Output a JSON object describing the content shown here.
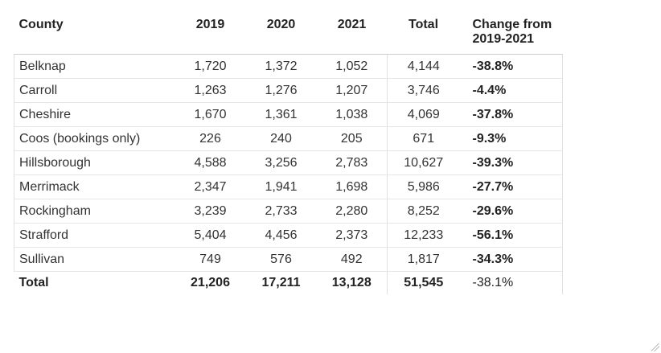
{
  "table": {
    "headers": {
      "county": "County",
      "y2019": "2019",
      "y2020": "2020",
      "y2021": "2021",
      "total": "Total",
      "change_line1": "Change from",
      "change_line2": "2019-2021"
    },
    "rows": [
      {
        "county": "Belknap",
        "y2019": "1,720",
        "y2020": "1,372",
        "y2021": "1,052",
        "total": "4,144",
        "change": "-38.8%"
      },
      {
        "county": "Carroll",
        "y2019": "1,263",
        "y2020": "1,276",
        "y2021": "1,207",
        "total": "3,746",
        "change": "-4.4%"
      },
      {
        "county": "Cheshire",
        "y2019": "1,670",
        "y2020": "1,361",
        "y2021": "1,038",
        "total": "4,069",
        "change": "-37.8%"
      },
      {
        "county": "Coos (bookings only)",
        "y2019": "226",
        "y2020": "240",
        "y2021": "205",
        "total": "671",
        "change": "-9.3%"
      },
      {
        "county": "Hillsborough",
        "y2019": "4,588",
        "y2020": "3,256",
        "y2021": "2,783",
        "total": "10,627",
        "change": "-39.3%"
      },
      {
        "county": "Merrimack",
        "y2019": "2,347",
        "y2020": "1,941",
        "y2021": "1,698",
        "total": "5,986",
        "change": "-27.7%"
      },
      {
        "county": "Rockingham",
        "y2019": "3,239",
        "y2020": "2,733",
        "y2021": "2,280",
        "total": "8,252",
        "change": "-29.6%"
      },
      {
        "county": "Strafford",
        "y2019": "5,404",
        "y2020": "4,456",
        "y2021": "2,373",
        "total": "12,233",
        "change": "-56.1%"
      },
      {
        "county": "Sullivan",
        "y2019": "749",
        "y2020": "576",
        "y2021": "492",
        "total": "1,817",
        "change": "-34.3%"
      }
    ],
    "footer": {
      "county": "Total",
      "y2019": "21,206",
      "y2020": "17,211",
      "y2021": "13,128",
      "total": "51,545",
      "change": "-38.1%"
    }
  }
}
